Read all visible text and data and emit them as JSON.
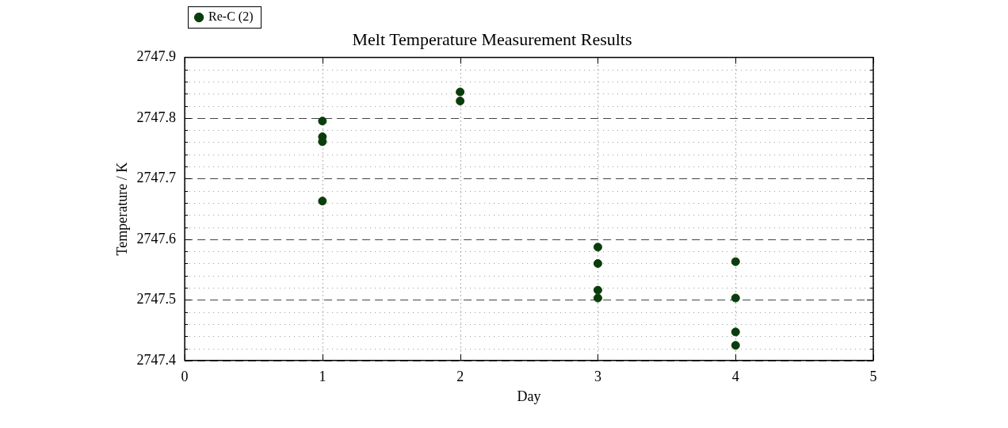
{
  "chart_data": {
    "type": "scatter",
    "title": "Melt Temperature Measurement Results",
    "xlabel": "Day",
    "ylabel": "Temperature / K",
    "series": [
      {
        "name": "Re-C (2)",
        "color": "#0b3d0b",
        "x": [
          1,
          1,
          1,
          1,
          2,
          2,
          3,
          3,
          3,
          3,
          4,
          4,
          4,
          4
        ],
        "values": [
          2747.795,
          2747.769,
          2747.761,
          2747.663,
          2747.843,
          2747.828,
          2747.587,
          2747.56,
          2747.516,
          2747.503,
          2747.563,
          2747.503,
          2747.447,
          2747.425
        ]
      }
    ],
    "xlim": [
      0,
      5
    ],
    "xticks": [
      0,
      1,
      2,
      3,
      4,
      5
    ],
    "ylim": [
      2747.4,
      2747.9
    ],
    "yticks": [
      2747.4,
      {
        "value": 2747.42,
        "label": null
      },
      {
        "value": 2747.44,
        "label": null
      },
      {
        "value": 2747.46,
        "label": null
      },
      {
        "value": 2747.48,
        "label": null
      },
      2747.5,
      {
        "value": 2747.52,
        "label": null
      },
      {
        "value": 2747.54,
        "label": null
      },
      {
        "value": 2747.56,
        "label": null
      },
      {
        "value": 2747.58,
        "label": null
      },
      2747.6,
      {
        "value": 2747.62,
        "label": null
      },
      {
        "value": 2747.64,
        "label": null
      },
      {
        "value": 2747.66,
        "label": null
      },
      {
        "value": 2747.68,
        "label": null
      },
      2747.7,
      {
        "value": 2747.72,
        "label": null
      },
      {
        "value": 2747.74,
        "label": null
      },
      {
        "value": 2747.76,
        "label": null
      },
      {
        "value": 2747.78,
        "label": null
      },
      2747.8,
      {
        "value": 2747.82,
        "label": null
      },
      {
        "value": 2747.84,
        "label": null
      },
      {
        "value": 2747.86,
        "label": null
      },
      {
        "value": 2747.88,
        "label": null
      },
      2747.9
    ],
    "grid": true,
    "legend": "top left",
    "marker": "circle"
  }
}
